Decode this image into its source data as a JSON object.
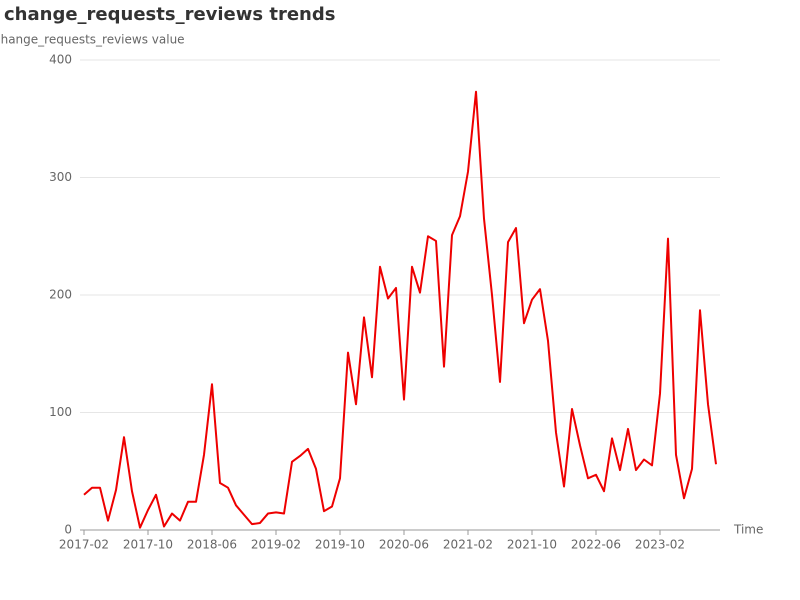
{
  "chart_data": {
    "type": "line",
    "title": "change_requests_reviews trends",
    "y_label": "change_requests_reviews value",
    "x_label": "Time",
    "color": "#ee0000",
    "x": [
      "2017-02",
      "2017-03",
      "2017-04",
      "2017-05",
      "2017-06",
      "2017-07",
      "2017-08",
      "2017-09",
      "2017-10",
      "2017-11",
      "2017-12",
      "2018-01",
      "2018-02",
      "2018-03",
      "2018-04",
      "2018-05",
      "2018-06",
      "2018-07",
      "2018-08",
      "2018-09",
      "2018-10",
      "2018-11",
      "2018-12",
      "2019-01",
      "2019-02",
      "2019-03",
      "2019-04",
      "2019-05",
      "2019-06",
      "2019-07",
      "2019-08",
      "2019-09",
      "2019-10",
      "2019-11",
      "2019-12",
      "2020-01",
      "2020-02",
      "2020-03",
      "2020-04",
      "2020-05",
      "2020-06",
      "2020-07",
      "2020-08",
      "2020-09",
      "2020-10",
      "2020-11",
      "2020-12",
      "2021-01",
      "2021-02",
      "2021-03",
      "2021-04",
      "2021-05",
      "2021-06",
      "2021-07",
      "2021-08",
      "2021-09",
      "2021-10",
      "2021-11",
      "2021-12",
      "2022-01",
      "2022-02",
      "2022-03",
      "2022-04",
      "2022-05",
      "2022-06",
      "2022-07",
      "2022-08",
      "2022-09",
      "2022-10",
      "2022-11",
      "2022-12",
      "2023-01",
      "2023-02",
      "2023-03",
      "2023-04",
      "2023-05",
      "2023-06",
      "2023-07",
      "2023-08",
      "2023-09"
    ],
    "values": [
      30,
      36,
      36,
      8,
      34,
      79,
      33,
      2,
      17,
      30,
      3,
      14,
      8,
      24,
      24,
      64,
      124,
      40,
      36,
      21,
      13,
      5,
      6,
      14,
      15,
      14,
      58,
      63,
      69,
      52,
      16,
      20,
      44,
      151,
      107,
      181,
      130,
      224,
      197,
      206,
      111,
      224,
      202,
      250,
      246,
      139,
      251,
      267,
      305,
      373,
      265,
      200,
      126,
      245,
      257,
      176,
      196,
      205,
      161,
      83,
      37,
      103,
      72,
      44,
      47,
      33,
      78,
      51,
      86,
      51,
      60,
      55,
      116,
      248,
      64,
      27,
      52,
      187,
      107,
      56
    ],
    "xticks": [
      "2017-02",
      "2017-10",
      "2018-06",
      "2019-02",
      "2019-10",
      "2020-06",
      "2021-02",
      "2021-10",
      "2022-06",
      "2023-02"
    ],
    "ylim": [
      0,
      400
    ],
    "yticks": [
      0,
      100,
      200,
      300,
      400
    ],
    "grid": true
  }
}
